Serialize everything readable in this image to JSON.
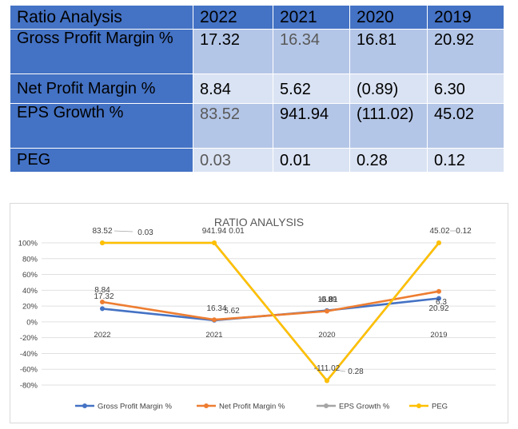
{
  "table": {
    "header": [
      "Ratio Analysis",
      "2022",
      "2021",
      "2020",
      "2019"
    ],
    "rows": [
      {
        "label": "Gross Profit Margin %",
        "values": [
          "17.32",
          "16.34",
          "16.81",
          "20.92"
        ],
        "grey": [
          false,
          true,
          false,
          false
        ]
      },
      {
        "label": "Net Profit Margin %",
        "values": [
          "8.84",
          "5.62",
          "(0.89)",
          "6.30"
        ],
        "grey": [
          false,
          false,
          false,
          false
        ]
      },
      {
        "label": "EPS Growth %",
        "values": [
          "83.52",
          "941.94",
          "(111.02)",
          "45.02"
        ],
        "grey": [
          true,
          false,
          false,
          false
        ]
      },
      {
        "label": "PEG",
        "values": [
          "0.03",
          "0.01",
          "0.28",
          "0.12"
        ],
        "grey": [
          true,
          false,
          false,
          false
        ]
      }
    ]
  },
  "chart_data": {
    "type": "line",
    "title": "RATIO ANALYSIS",
    "categories": [
      "2022",
      "2021",
      "2020",
      "2019"
    ],
    "ylim": [
      -80,
      100
    ],
    "yticks": [
      "100%",
      "80%",
      "60%",
      "40%",
      "20%",
      "0%",
      "-20%",
      "-40%",
      "-60%",
      "-80%"
    ],
    "ytick_values": [
      100,
      80,
      60,
      40,
      20,
      0,
      -20,
      -40,
      -60,
      -80
    ],
    "stacked": true,
    "grid": true,
    "legend_position": "bottom",
    "series": [
      {
        "name": "Gross Profit Margin %",
        "color": "#4472c4",
        "cumulative_percent": [
          16.7,
          2.0,
          14.3,
          29.7
        ],
        "labels": [
          "17.32",
          "16.34",
          "16.81",
          "20.92"
        ]
      },
      {
        "name": "Net Profit Margin %",
        "color": "#ed7d31",
        "cumulative_percent": [
          25.2,
          2.7,
          13.5,
          38.6
        ],
        "labels": [
          "8.84",
          "5.62",
          "-0.89",
          "6.3"
        ]
      },
      {
        "name": "EPS Growth %",
        "color": "#a5a5a5",
        "cumulative_percent": [
          100.0,
          100.0,
          -74.5,
          100.0
        ],
        "labels": [
          "83.52",
          "941.94",
          "-111.02",
          "45.02"
        ]
      },
      {
        "name": "PEG",
        "color": "#ffc000",
        "cumulative_percent": [
          100.0,
          100.0,
          -74.5,
          100.0
        ],
        "labels": [
          "0.03",
          "0.01",
          "0.28",
          "0.12"
        ]
      }
    ]
  }
}
